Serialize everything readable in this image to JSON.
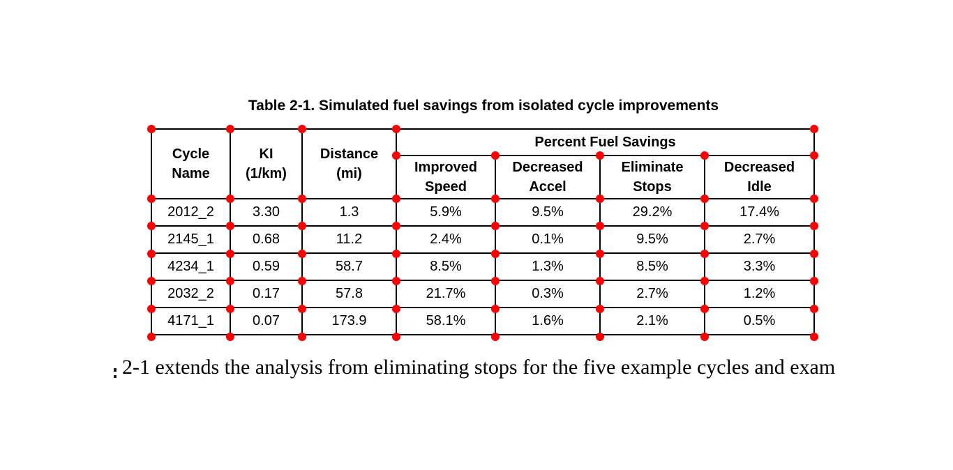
{
  "caption": "Table 2-1. Simulated fuel savings from isolated cycle improvements",
  "table": {
    "header": {
      "group": "Percent Fuel Savings",
      "cycle_name": "Cycle\nName",
      "ki": "KI\n(1/km)",
      "distance": "Distance\n(mi)",
      "improved_speed": "Improved\nSpeed",
      "decreased_accel": "Decreased\nAccel",
      "eliminate_stops": "Eliminate\nStops",
      "decreased_idle": "Decreased\nIdle"
    },
    "rows": [
      {
        "cycle": "2012_2",
        "ki": "3.30",
        "distance": "1.3",
        "improved_speed": "5.9%",
        "decreased_accel": "9.5%",
        "eliminate_stops": "29.2%",
        "decreased_idle": "17.4%"
      },
      {
        "cycle": "2145_1",
        "ki": "0.68",
        "distance": "11.2",
        "improved_speed": "2.4%",
        "decreased_accel": "0.1%",
        "eliminate_stops": "9.5%",
        "decreased_idle": "2.7%"
      },
      {
        "cycle": "4234_1",
        "ki": "0.59",
        "distance": "58.7",
        "improved_speed": "8.5%",
        "decreased_accel": "1.3%",
        "eliminate_stops": "8.5%",
        "decreased_idle": "3.3%"
      },
      {
        "cycle": "2032_2",
        "ki": "0.17",
        "distance": "57.8",
        "improved_speed": "21.7%",
        "decreased_accel": "0.3%",
        "eliminate_stops": "2.7%",
        "decreased_idle": "1.2%"
      },
      {
        "cycle": "4171_1",
        "ki": "0.07",
        "distance": "173.9",
        "improved_speed": "58.1%",
        "decreased_accel": "1.6%",
        "eliminate_stops": "2.1%",
        "decreased_idle": "0.5%"
      }
    ]
  },
  "body_text": "2-1 extends the analysis from eliminating stops for the five example cycles and exam",
  "annotations": {
    "marker_color": "#ff0000",
    "marker_shape": "circle",
    "marker_count": 58
  }
}
